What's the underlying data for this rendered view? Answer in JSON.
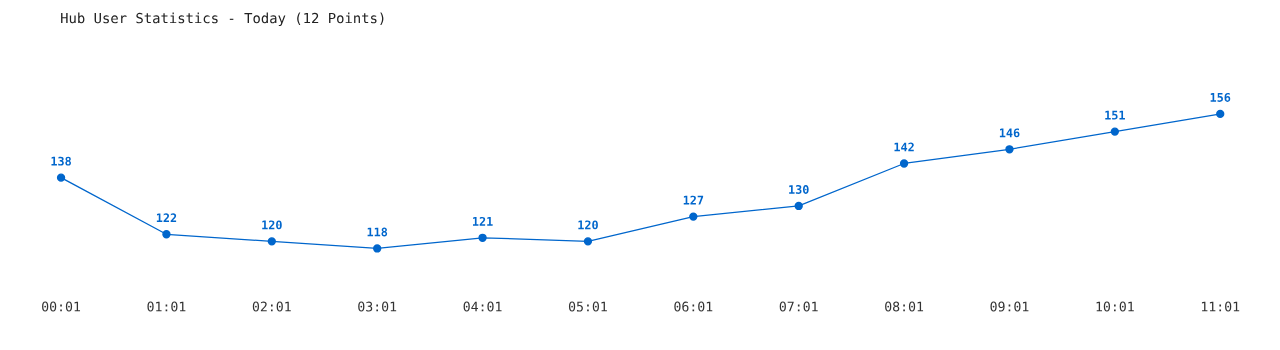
{
  "chart_data": {
    "type": "line",
    "title": "Hub User Statistics - Today (12 Points)",
    "categories": [
      "00:01",
      "01:01",
      "02:01",
      "03:01",
      "04:01",
      "05:01",
      "06:01",
      "07:01",
      "08:01",
      "09:01",
      "10:01",
      "11:01"
    ],
    "values": [
      138,
      122,
      120,
      118,
      121,
      120,
      127,
      130,
      142,
      146,
      151,
      156
    ],
    "color": "#0066cc",
    "marker": "circle",
    "line_style": "solid",
    "data_labels": true,
    "grid": false,
    "legend": false
  }
}
